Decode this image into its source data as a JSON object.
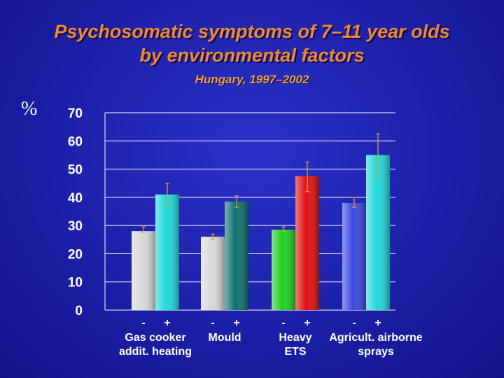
{
  "chart_data": {
    "type": "bar",
    "title_line1": "Psychosomatic symptoms of 7–11 year olds",
    "title_line2": "by environmental factors",
    "subtitle": "Hungary, 1997–2002",
    "ylabel": "%",
    "ylim": [
      0,
      70
    ],
    "yticks": [
      "0",
      "10",
      "20",
      "30",
      "40",
      "50",
      "60",
      "70"
    ],
    "groups": [
      {
        "neg_label": "-",
        "pos_label": "+",
        "label_lines": [
          "Gas cooker",
          "addit. heating"
        ],
        "bars": [
          {
            "sign": "-",
            "value": 28,
            "low": 27.5,
            "high": 29.5,
            "color": "#d8d8d8"
          },
          {
            "sign": "+",
            "value": 41,
            "low": 37,
            "high": 45,
            "color": "#20d8d8"
          }
        ]
      },
      {
        "neg_label": "-",
        "pos_label": "+",
        "label_lines": [
          "Mould"
        ],
        "bars": [
          {
            "sign": "-",
            "value": 26,
            "low": 25,
            "high": 27,
            "color": "#d8d8d8"
          },
          {
            "sign": "+",
            "value": 38.5,
            "low": 36.5,
            "high": 40.5,
            "color": "#107070"
          }
        ]
      },
      {
        "neg_label": "-",
        "pos_label": "+",
        "label_lines": [
          "Heavy",
          "ETS"
        ],
        "bars": [
          {
            "sign": "-",
            "value": 28.5,
            "low": 28,
            "high": 29.5,
            "color": "#20d020"
          },
          {
            "sign": "+",
            "value": 47.5,
            "low": 42,
            "high": 52.5,
            "color": "#e01010"
          }
        ]
      },
      {
        "neg_label": "-",
        "pos_label": "+",
        "label_lines": [
          "Agricult. airborne",
          "sprays"
        ],
        "bars": [
          {
            "sign": "-",
            "value": 38,
            "low": 36.5,
            "high": 40,
            "color": "#3a48e0"
          },
          {
            "sign": "+",
            "value": 55,
            "low": 47.5,
            "high": 62.5,
            "color": "#20d8d8"
          }
        ]
      }
    ]
  }
}
